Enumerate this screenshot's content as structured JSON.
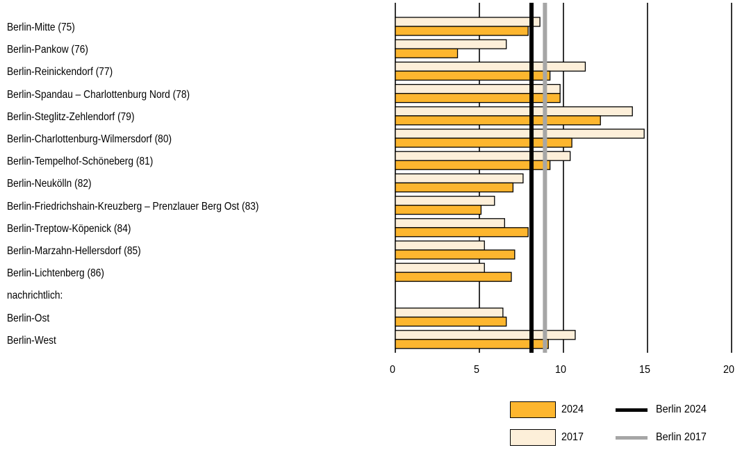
{
  "chart_data": {
    "type": "bar",
    "orientation": "horizontal",
    "categories": [
      "Berlin-Mitte (75)",
      "Berlin-Pankow (76)",
      "Berlin-Reinickendorf (77)",
      "Berlin-Spandau – Charlottenburg Nord (78)",
      "Berlin-Steglitz-Zehlendorf (79)",
      "Berlin-Charlottenburg-Wilmersdorf (80)",
      "Berlin-Tempelhof-Schöneberg (81)",
      "Berlin-Neukölln (82)",
      "Berlin-Friedrichshain-Kreuzberg – Prenzlauer Berg Ost (83)",
      "Berlin-Treptow-Köpenick (84)",
      "Berlin-Marzahn-Hellersdorf (85)",
      "Berlin-Lichtenberg (86)",
      "nachrichtlich:",
      "Berlin-Ost",
      "Berlin-West"
    ],
    "series": [
      {
        "name": "2017",
        "color": "#fdefd9",
        "values": [
          8.6,
          6.6,
          11.3,
          9.8,
          14.1,
          14.8,
          10.4,
          7.6,
          5.9,
          6.5,
          5.3,
          5.3,
          null,
          6.4,
          10.7
        ]
      },
      {
        "name": "2024",
        "color": "#fdb62f",
        "values": [
          7.9,
          3.7,
          9.2,
          9.8,
          12.2,
          10.5,
          9.2,
          7.0,
          5.1,
          7.9,
          7.1,
          6.9,
          null,
          6.6,
          9.1
        ]
      }
    ],
    "reference_lines": [
      {
        "name": "Berlin 2024",
        "value": 8.1,
        "color": "#000000"
      },
      {
        "name": "Berlin 2017",
        "value": 8.9,
        "color": "#a6a6a6"
      }
    ],
    "xlim": [
      0,
      20
    ],
    "xticks": [
      "0",
      "5",
      "10",
      "15",
      "20"
    ],
    "grid": true,
    "legend_position": "bottom-right",
    "title": "",
    "xlabel": "",
    "ylabel": ""
  }
}
